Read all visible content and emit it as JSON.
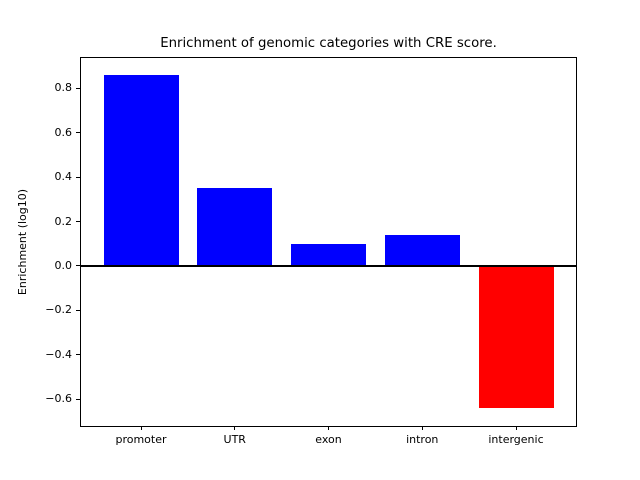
{
  "chart_data": {
    "type": "bar",
    "title": "Enrichment of genomic categories with CRE score.",
    "xlabel": "",
    "ylabel": "Enrichment (log10)",
    "categories": [
      "promoter",
      "UTR",
      "exon",
      "intron",
      "intergenic"
    ],
    "values": [
      0.86,
      0.35,
      0.1,
      0.14,
      -0.64
    ],
    "bar_width": 0.8,
    "xlim": [
      -0.64,
      4.64
    ],
    "ylim": [
      -0.721,
      0.937
    ],
    "yticks": [
      0.8,
      0.6,
      0.4,
      0.2,
      0.0,
      -0.2,
      -0.4,
      -0.6
    ],
    "grid": false,
    "legend": null,
    "zero_line": true,
    "colors": {
      "positive_bar": "#0000FF",
      "negative_bar": "#FF0000",
      "zero_line": "#000000",
      "axis": "#000000",
      "background": "#FFFFFF",
      "text": "#000000"
    }
  }
}
